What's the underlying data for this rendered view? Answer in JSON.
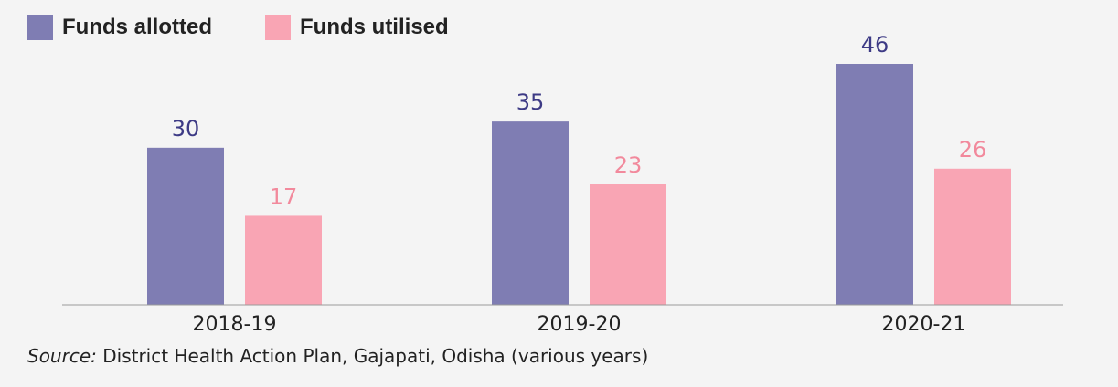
{
  "chart_data": {
    "type": "bar",
    "categories": [
      "2018-19",
      "2019-20",
      "2020-21"
    ],
    "series": [
      {
        "name": "Funds allotted",
        "values": [
          30,
          35,
          46
        ],
        "color": "#7f7db3",
        "label_color": "#3d3a85"
      },
      {
        "name": "Funds utilised",
        "values": [
          17,
          23,
          26
        ],
        "color": "#f9a5b4",
        "label_color": "#f2899c"
      }
    ],
    "title": "",
    "xlabel": "",
    "ylabel": "",
    "ylim": [
      0,
      46
    ],
    "grid": false,
    "legend_position": "top-left"
  },
  "legend": {
    "items": [
      {
        "label": "Funds allotted",
        "color": "#7f7db3"
      },
      {
        "label": "Funds utilised",
        "color": "#f9a5b4"
      }
    ]
  },
  "source": {
    "label": "Source:",
    "text": " District Health Action Plan, Gajapati, Odisha (various years)"
  }
}
